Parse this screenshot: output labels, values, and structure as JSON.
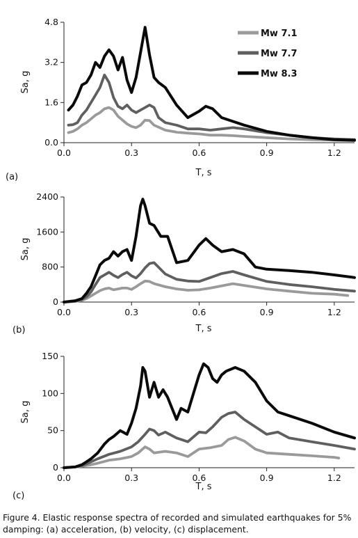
{
  "caption": "Figure 4. Elastic response spectra of recorded and simulated earthquakes for 5% damping: (a) acceleration, (b) velocity, (c) displacement.",
  "colors": {
    "mw71": "#9a9a9a",
    "mw77": "#5f5f5f",
    "mw83": "#0a0a0a"
  },
  "chart_data": [
    {
      "type": "line",
      "panel_label": "(a)",
      "xlabel": "T,  s",
      "ylabel": "Sa, g",
      "xlim": [
        0,
        1.29
      ],
      "ylim": [
        0,
        4.8
      ],
      "x_ticks": [
        "0.0",
        "0.3",
        "0.6",
        "0.9",
        "1.2"
      ],
      "y_ticks": [
        "0.0",
        "1.6",
        "3.2",
        "4.8"
      ],
      "legend": "top-right",
      "series": [
        {
          "name": "Mw 7.1",
          "color_key": "mw71",
          "x": [
            0.02,
            0.04,
            0.06,
            0.08,
            0.1,
            0.12,
            0.14,
            0.16,
            0.18,
            0.2,
            0.22,
            0.24,
            0.26,
            0.28,
            0.3,
            0.32,
            0.34,
            0.36,
            0.38,
            0.4,
            0.45,
            0.5,
            0.55,
            0.6,
            0.65,
            0.7,
            0.75,
            0.8,
            0.9,
            1.0,
            1.1,
            1.2,
            1.29
          ],
          "y": [
            0.4,
            0.45,
            0.55,
            0.7,
            0.8,
            0.95,
            1.1,
            1.2,
            1.35,
            1.4,
            1.3,
            1.05,
            0.9,
            0.75,
            0.65,
            0.6,
            0.7,
            0.9,
            0.88,
            0.7,
            0.5,
            0.42,
            0.38,
            0.35,
            0.3,
            0.3,
            0.28,
            0.25,
            0.2,
            0.15,
            0.12,
            0.1,
            0.08
          ]
        },
        {
          "name": "Mw 7.7",
          "color_key": "mw77",
          "x": [
            0.02,
            0.04,
            0.06,
            0.08,
            0.1,
            0.12,
            0.14,
            0.16,
            0.18,
            0.2,
            0.22,
            0.24,
            0.26,
            0.28,
            0.3,
            0.32,
            0.34,
            0.36,
            0.38,
            0.4,
            0.42,
            0.45,
            0.5,
            0.55,
            0.6,
            0.65,
            0.7,
            0.75,
            0.8,
            0.9,
            1.0,
            1.1,
            1.2,
            1.29
          ],
          "y": [
            0.7,
            0.72,
            0.8,
            1.1,
            1.3,
            1.6,
            1.9,
            2.2,
            2.7,
            2.4,
            1.8,
            1.45,
            1.35,
            1.5,
            1.3,
            1.2,
            1.3,
            1.4,
            1.5,
            1.4,
            1.0,
            0.8,
            0.7,
            0.55,
            0.55,
            0.5,
            0.55,
            0.6,
            0.55,
            0.4,
            0.3,
            0.2,
            0.15,
            0.12
          ]
        },
        {
          "name": "Mw 8.3",
          "color_key": "mw83",
          "x": [
            0.02,
            0.04,
            0.06,
            0.08,
            0.1,
            0.12,
            0.14,
            0.16,
            0.18,
            0.2,
            0.22,
            0.24,
            0.26,
            0.28,
            0.3,
            0.32,
            0.34,
            0.36,
            0.38,
            0.4,
            0.42,
            0.45,
            0.5,
            0.55,
            0.6,
            0.63,
            0.66,
            0.7,
            0.75,
            0.8,
            0.9,
            1.0,
            1.1,
            1.2,
            1.29
          ],
          "y": [
            1.3,
            1.5,
            1.85,
            2.3,
            2.4,
            2.7,
            3.2,
            3.0,
            3.45,
            3.7,
            3.45,
            2.9,
            3.4,
            2.5,
            2.0,
            2.6,
            3.6,
            4.6,
            3.5,
            2.6,
            2.4,
            2.2,
            1.5,
            1.0,
            1.25,
            1.45,
            1.35,
            1.0,
            0.85,
            0.7,
            0.45,
            0.3,
            0.2,
            0.12,
            0.1
          ]
        }
      ]
    },
    {
      "type": "line",
      "panel_label": "(b)",
      "xlabel": "T,  s",
      "ylabel": "Sa, g",
      "xlim": [
        0,
        1.29
      ],
      "ylim": [
        0,
        2400
      ],
      "x_ticks": [
        "0.0",
        "0.3",
        "0.6",
        "0.9",
        "1.2"
      ],
      "y_ticks": [
        "0",
        "800",
        "1600",
        "2400"
      ],
      "series": [
        {
          "name": "Mw 7.1",
          "color_key": "mw71",
          "x": [
            0.0,
            0.05,
            0.08,
            0.1,
            0.12,
            0.14,
            0.16,
            0.18,
            0.2,
            0.22,
            0.24,
            0.26,
            0.28,
            0.3,
            0.32,
            0.34,
            0.36,
            0.38,
            0.4,
            0.45,
            0.5,
            0.55,
            0.6,
            0.65,
            0.7,
            0.75,
            0.8,
            0.9,
            1.0,
            1.1,
            1.2,
            1.26
          ],
          "y": [
            0,
            15,
            40,
            80,
            140,
            200,
            260,
            300,
            320,
            280,
            300,
            320,
            320,
            290,
            350,
            420,
            480,
            470,
            420,
            350,
            300,
            270,
            280,
            320,
            370,
            420,
            380,
            300,
            250,
            200,
            180,
            150
          ]
        },
        {
          "name": "Mw 7.7",
          "color_key": "mw77",
          "x": [
            0.0,
            0.05,
            0.08,
            0.1,
            0.12,
            0.14,
            0.16,
            0.18,
            0.2,
            0.22,
            0.24,
            0.26,
            0.28,
            0.3,
            0.32,
            0.34,
            0.36,
            0.38,
            0.4,
            0.45,
            0.5,
            0.55,
            0.6,
            0.65,
            0.7,
            0.75,
            0.8,
            0.9,
            1.0,
            1.1,
            1.2,
            1.29
          ],
          "y": [
            0,
            20,
            60,
            120,
            230,
            400,
            560,
            620,
            680,
            610,
            560,
            630,
            680,
            600,
            550,
            650,
            780,
            880,
            900,
            640,
            520,
            480,
            470,
            560,
            650,
            700,
            620,
            470,
            400,
            350,
            290,
            250
          ]
        },
        {
          "name": "Mw 8.3",
          "color_key": "mw83",
          "x": [
            0.0,
            0.05,
            0.08,
            0.1,
            0.12,
            0.14,
            0.16,
            0.18,
            0.2,
            0.22,
            0.24,
            0.26,
            0.28,
            0.3,
            0.32,
            0.34,
            0.35,
            0.36,
            0.38,
            0.4,
            0.43,
            0.46,
            0.5,
            0.55,
            0.6,
            0.63,
            0.66,
            0.7,
            0.75,
            0.8,
            0.85,
            0.9,
            1.0,
            1.1,
            1.2,
            1.29
          ],
          "y": [
            0,
            30,
            80,
            200,
            350,
            600,
            850,
            950,
            1000,
            1150,
            1050,
            1150,
            1200,
            950,
            1500,
            2200,
            2350,
            2200,
            1800,
            1750,
            1500,
            1500,
            900,
            950,
            1300,
            1450,
            1300,
            1150,
            1200,
            1100,
            800,
            750,
            720,
            680,
            620,
            560
          ]
        }
      ]
    },
    {
      "type": "line",
      "panel_label": "(c)",
      "xlabel": "T,  s",
      "ylabel": "Sa, g",
      "xlim": [
        0,
        1.29
      ],
      "ylim": [
        0,
        150
      ],
      "x_ticks": [
        "0.0",
        "0.3",
        "0.6",
        "0.9",
        "1.2"
      ],
      "y_ticks": [
        "0",
        "50",
        "100",
        "150"
      ],
      "series": [
        {
          "name": "Mw 7.1",
          "color_key": "mw71",
          "x": [
            0.0,
            0.05,
            0.08,
            0.1,
            0.12,
            0.15,
            0.2,
            0.25,
            0.3,
            0.33,
            0.36,
            0.38,
            0.4,
            0.45,
            0.5,
            0.55,
            0.6,
            0.65,
            0.7,
            0.73,
            0.76,
            0.8,
            0.85,
            0.9,
            1.0,
            1.1,
            1.2,
            1.22
          ],
          "y": [
            0,
            1,
            2,
            3,
            4,
            6,
            10,
            12,
            15,
            20,
            28,
            25,
            20,
            22,
            20,
            15,
            25,
            27,
            30,
            38,
            41,
            36,
            25,
            20,
            18,
            16,
            14,
            13
          ]
        },
        {
          "name": "Mw 7.7",
          "color_key": "mw77",
          "x": [
            0.0,
            0.05,
            0.08,
            0.1,
            0.12,
            0.15,
            0.2,
            0.25,
            0.3,
            0.33,
            0.36,
            0.38,
            0.4,
            0.42,
            0.45,
            0.5,
            0.55,
            0.6,
            0.63,
            0.66,
            0.7,
            0.73,
            0.76,
            0.8,
            0.85,
            0.9,
            0.95,
            1.0,
            1.1,
            1.2,
            1.29
          ],
          "y": [
            0,
            1,
            3,
            5,
            8,
            12,
            18,
            22,
            28,
            35,
            45,
            52,
            50,
            44,
            48,
            40,
            35,
            48,
            47,
            55,
            68,
            73,
            75,
            65,
            55,
            45,
            48,
            40,
            35,
            30,
            25
          ]
        },
        {
          "name": "Mw 8.3",
          "color_key": "mw83",
          "x": [
            0.0,
            0.05,
            0.08,
            0.1,
            0.12,
            0.15,
            0.18,
            0.2,
            0.22,
            0.25,
            0.28,
            0.3,
            0.32,
            0.34,
            0.35,
            0.36,
            0.38,
            0.4,
            0.42,
            0.44,
            0.46,
            0.48,
            0.5,
            0.52,
            0.55,
            0.58,
            0.6,
            0.62,
            0.64,
            0.66,
            0.68,
            0.7,
            0.72,
            0.76,
            0.8,
            0.85,
            0.9,
            0.95,
            1.0,
            1.1,
            1.2,
            1.29
          ],
          "y": [
            0,
            1,
            4,
            8,
            12,
            20,
            32,
            38,
            42,
            50,
            45,
            60,
            80,
            110,
            135,
            130,
            95,
            115,
            95,
            105,
            95,
            80,
            65,
            80,
            75,
            105,
            125,
            140,
            135,
            120,
            115,
            125,
            130,
            135,
            130,
            115,
            90,
            75,
            70,
            60,
            48,
            40
          ]
        }
      ]
    }
  ]
}
